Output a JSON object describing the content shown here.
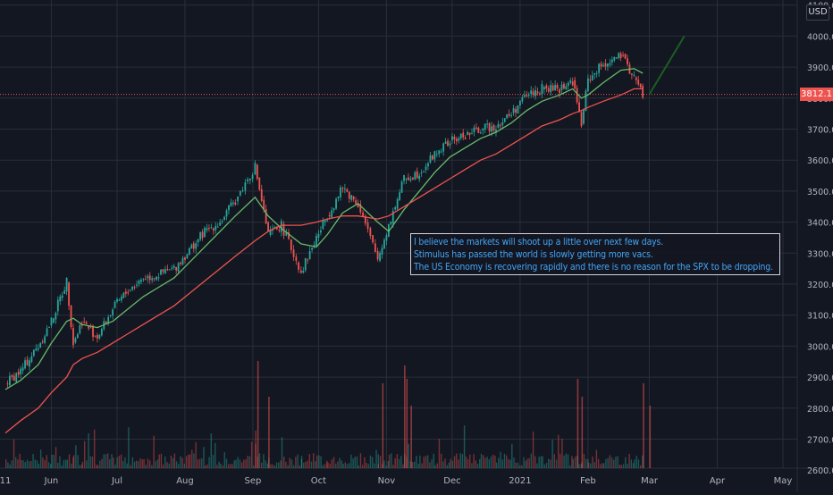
{
  "chart_data": {
    "type": "candlestick",
    "symbol_currency": "USD",
    "last_price": "3812.1",
    "y_axis": {
      "ticks": [
        "3900.0",
        "3800.0",
        "3700.0",
        "3600.0",
        "3500.0",
        "3400.0",
        "3300.0",
        "3200.0",
        "3100.0",
        "3000.0",
        "2900.0",
        "2800.0",
        "2700.0"
      ],
      "partial_ticks": [
        "4100.0",
        "4000.0",
        "2600.0"
      ],
      "ylim": [
        2600,
        4100
      ]
    },
    "x_axis": {
      "ticks": [
        "11",
        "Jun",
        "Jul",
        "Aug",
        "Sep",
        "Oct",
        "Nov",
        "Dec",
        "2021",
        "Feb",
        "Mar",
        "Apr",
        "May"
      ]
    },
    "close_series": {
      "dates": [
        "2020-05-11",
        "2020-05-18",
        "2020-05-26",
        "2020-06-01",
        "2020-06-08",
        "2020-06-11",
        "2020-06-15",
        "2020-06-22",
        "2020-06-29",
        "2020-07-06",
        "2020-07-13",
        "2020-07-20",
        "2020-07-27",
        "2020-08-03",
        "2020-08-10",
        "2020-08-17",
        "2020-08-24",
        "2020-09-02",
        "2020-09-08",
        "2020-09-14",
        "2020-09-23",
        "2020-09-30",
        "2020-10-05",
        "2020-10-12",
        "2020-10-19",
        "2020-10-28",
        "2020-11-02",
        "2020-11-09",
        "2020-11-16",
        "2020-11-23",
        "2020-11-30",
        "2020-12-07",
        "2020-12-14",
        "2020-12-21",
        "2020-12-28",
        "2021-01-04",
        "2021-01-11",
        "2021-01-19",
        "2021-01-25",
        "2021-01-29",
        "2021-02-01",
        "2021-02-08",
        "2021-02-16",
        "2021-02-22",
        "2021-02-26"
      ],
      "close": [
        2880,
        2920,
        3000,
        3080,
        3210,
        3010,
        3080,
        3030,
        3120,
        3180,
        3220,
        3230,
        3250,
        3310,
        3370,
        3400,
        3470,
        3580,
        3360,
        3390,
        3240,
        3350,
        3420,
        3510,
        3460,
        3280,
        3390,
        3540,
        3560,
        3620,
        3660,
        3680,
        3700,
        3710,
        3750,
        3810,
        3830,
        3830,
        3855,
        3715,
        3860,
        3910,
        3935,
        3870,
        3812
      ]
    },
    "moving_averages": [
      {
        "color": "#66bb6a",
        "values": [
          2860,
          2890,
          2940,
          3010,
          3080,
          3090,
          3070,
          3060,
          3080,
          3120,
          3160,
          3190,
          3220,
          3270,
          3320,
          3370,
          3420,
          3480,
          3420,
          3380,
          3330,
          3320,
          3360,
          3430,
          3460,
          3400,
          3370,
          3440,
          3500,
          3560,
          3610,
          3640,
          3670,
          3690,
          3720,
          3760,
          3790,
          3810,
          3830,
          3800,
          3810,
          3850,
          3890,
          3895,
          3880
        ]
      },
      {
        "color": "#ef5350",
        "values": [
          2720,
          2760,
          2800,
          2850,
          2900,
          2940,
          2960,
          2980,
          3010,
          3040,
          3070,
          3100,
          3130,
          3170,
          3210,
          3250,
          3290,
          3340,
          3370,
          3390,
          3390,
          3400,
          3410,
          3420,
          3420,
          3410,
          3420,
          3450,
          3480,
          3510,
          3540,
          3570,
          3600,
          3620,
          3650,
          3680,
          3710,
          3730,
          3750,
          3760,
          3770,
          3790,
          3810,
          3830,
          3830
        ]
      }
    ],
    "projection": {
      "from_date": "2021-03-01",
      "from_price": 3812,
      "to_date": "2021-03-17",
      "to_price": 4000,
      "color": "#1b5e20"
    },
    "volume": "shown as bars along bottom, spikes around early Sep, late Oct–Nov, late Jan, end Feb",
    "grid": true
  },
  "annotation": {
    "lines": [
      "I believe the markets will shoot up a little over next few days.",
      "Stimulus has passed the world is slowly getting more vacs.",
      "The US Economy is recovering rapidly and there is no reason for the SPX to be dropping."
    ],
    "text_color": "#42a5f5"
  },
  "colors": {
    "background": "#131722",
    "grid": "#2a2e39",
    "up": "#26a69a",
    "down": "#ef5350",
    "axis_text": "#b2b5be"
  }
}
